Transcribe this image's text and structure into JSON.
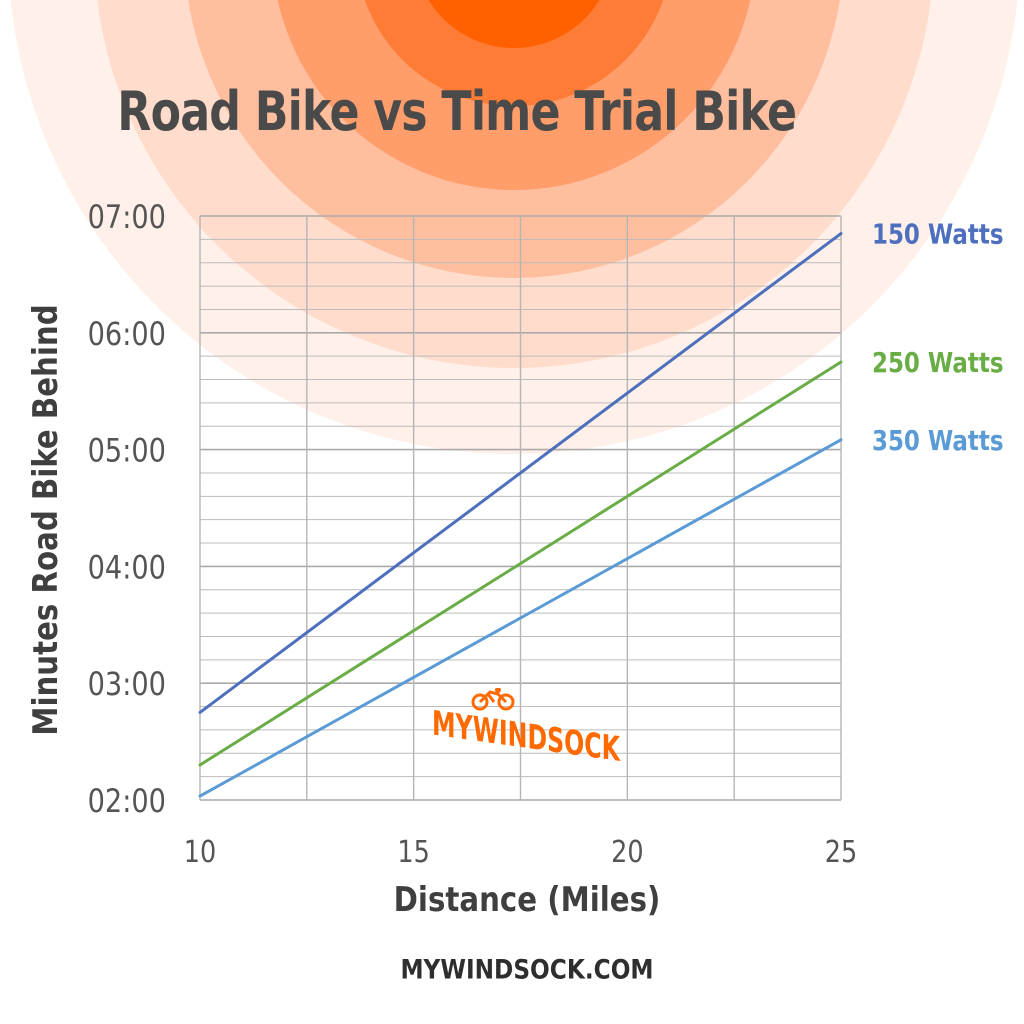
{
  "title": "Road Bike vs Time Trial Bike",
  "footer": "MYWINDSOCK.COM",
  "logo_text": "MYWINDSOCK",
  "colors": {
    "title": "#4a4a4a",
    "axis_text": "#3f3f3f",
    "grid": "#bcbcbc",
    "rings": [
      "#fff0e9",
      "#ffdccb",
      "#ffbf9f",
      "#ff9d6b",
      "#ff7c37",
      "#ff6000"
    ],
    "logo": "#ff6a00"
  },
  "chart_data": {
    "type": "line",
    "title": "Road Bike vs Time Trial Bike",
    "xlabel": "Distance (Miles)",
    "ylabel": "Minutes Road Bike Behind",
    "xlim": [
      10,
      25
    ],
    "ylim": [
      120,
      420
    ],
    "x_ticks": [
      10,
      15,
      20,
      25
    ],
    "x_tick_labels": [
      "10",
      "15",
      "20",
      "25"
    ],
    "y_ticks": [
      120,
      180,
      240,
      300,
      360,
      420
    ],
    "y_tick_labels": [
      "02:00",
      "03:00",
      "04:00",
      "05:00",
      "06:00",
      "07:00"
    ],
    "y_unit": "seconds",
    "grid": true,
    "legend": "right-end labels",
    "series": [
      {
        "name": "150 Watts",
        "color": "#4e6fbe",
        "x": [
          10,
          25
        ],
        "y": [
          165,
          411
        ]
      },
      {
        "name": "250 Watts",
        "color": "#6aad46",
        "x": [
          10,
          25
        ],
        "y": [
          138,
          345
        ]
      },
      {
        "name": "350 Watts",
        "color": "#5b9bd5",
        "x": [
          10,
          25
        ],
        "y": [
          122,
          305
        ]
      }
    ]
  }
}
